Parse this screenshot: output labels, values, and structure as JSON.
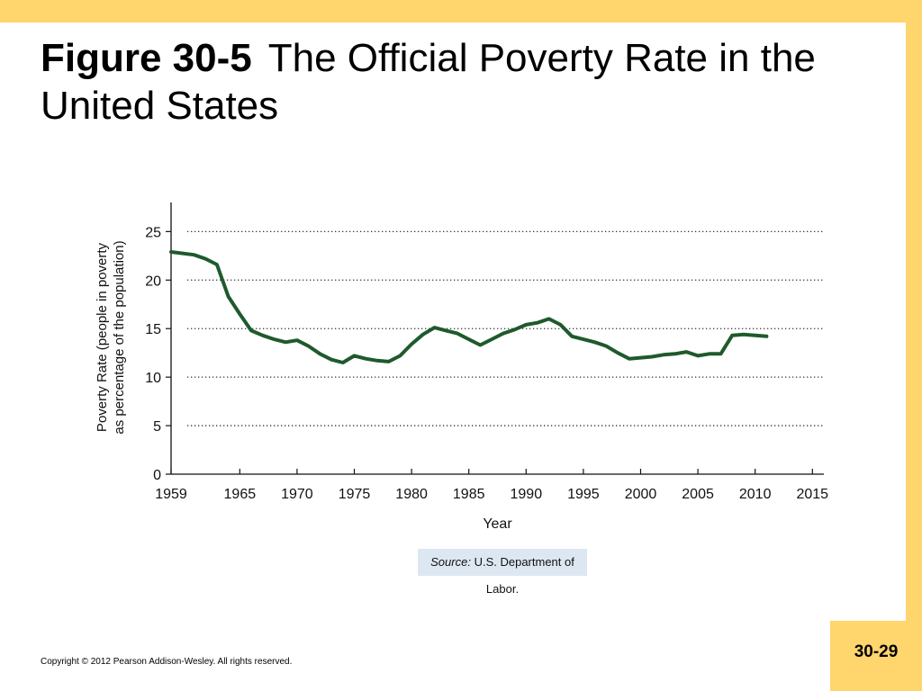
{
  "slide": {
    "title_figure": "Figure 30-5",
    "title_text": "The Official Poverty Rate in the United States",
    "source_label": "Source:",
    "source_text": "U.S. Department of Labor.",
    "copyright": "Copyright © 2012 Pearson Addison-Wesley. All rights reserved.",
    "slide_number": "30-29",
    "colors": {
      "accent_bar": "#ffd56e",
      "line": "#1e5a2c",
      "source_bg": "#dde7f2"
    }
  },
  "chart_data": {
    "type": "line",
    "title": "",
    "xlabel": "Year",
    "ylabel": "Poverty Rate (people in poverty as percentage of the population)",
    "ylabel_lines": [
      "Poverty Rate (people in poverty",
      "as percentage of the population)"
    ],
    "xlim": [
      1959,
      2016
    ],
    "ylim": [
      0,
      28
    ],
    "x_ticks": [
      1959,
      1965,
      1970,
      1975,
      1980,
      1985,
      1990,
      1995,
      2000,
      2005,
      2010,
      2015
    ],
    "y_ticks": [
      0,
      5,
      10,
      15,
      20,
      25
    ],
    "grid": "horizontal dotted at 5, 10, 15, 20, 25",
    "legend": "none",
    "series": [
      {
        "x": [
          1959,
          1961,
          1962,
          1963,
          1964,
          1965,
          1966,
          1967,
          1968,
          1969,
          1970,
          1971,
          1972,
          1973,
          1974,
          1975,
          1976,
          1977,
          1978,
          1979,
          1980,
          1981,
          1982,
          1983,
          1984,
          1985,
          1986,
          1987,
          1988,
          1989,
          1990,
          1991,
          1992,
          1993,
          1994,
          1995,
          1996,
          1997,
          1998,
          1999,
          2000,
          2001,
          2002,
          2003,
          2004,
          2005,
          2006,
          2007,
          2008,
          2009,
          2010,
          2011
        ],
        "values": [
          22.9,
          22.6,
          22.2,
          21.6,
          18.3,
          16.5,
          14.8,
          14.3,
          13.9,
          13.6,
          13.8,
          13.2,
          12.4,
          11.8,
          11.5,
          12.2,
          11.9,
          11.7,
          11.6,
          12.2,
          13.4,
          14.4,
          15.1,
          14.8,
          14.5,
          13.9,
          13.3,
          13.9,
          14.5,
          14.9,
          15.4,
          15.6,
          16.0,
          15.4,
          14.2,
          13.9,
          13.6,
          13.2,
          12.5,
          11.9,
          12.0,
          12.1,
          12.3,
          12.4,
          12.6,
          12.2,
          12.4,
          12.4,
          14.3,
          14.4,
          14.3,
          14.2
        ]
      }
    ]
  }
}
